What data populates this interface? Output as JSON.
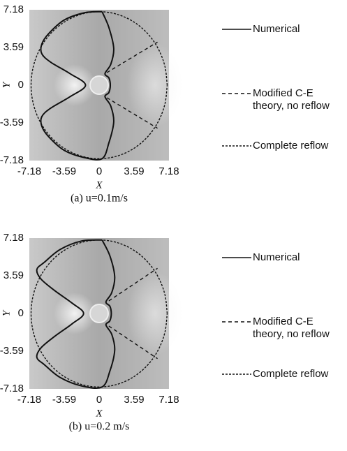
{
  "chart_data": [
    {
      "type": "line",
      "caption": "(a) u=0.1m/s",
      "x_label": "X",
      "y_label": "Y",
      "xlim": [
        -7.18,
        7.18
      ],
      "ylim": [
        -7.18,
        7.18
      ],
      "xticks": [
        -7.18,
        -3.59,
        0,
        3.59,
        7.18
      ],
      "yticks": [
        -7.18,
        -3.59,
        0,
        3.59,
        7.18
      ],
      "legend": "right",
      "series": [
        {
          "name": "Numerical",
          "color": "#111111",
          "line_style": "solid",
          "x": [
            0.3,
            -1.5,
            -3.6,
            -5.2,
            -5.9,
            -5.9,
            -5.0,
            -3.0,
            -1.4,
            -3.0,
            -5.0,
            -5.9,
            -5.9,
            -5.2,
            -3.6,
            -1.5,
            0.3,
            1.0,
            1.5,
            1.2,
            0.6,
            1.0,
            1.15,
            1.0,
            0.6,
            1.2,
            1.5,
            1.0,
            0.3
          ],
          "y": [
            7.0,
            6.9,
            6.2,
            4.9,
            3.9,
            3.0,
            2.2,
            1.1,
            0,
            -1.1,
            -2.2,
            -3.0,
            -3.9,
            -4.9,
            -6.2,
            -6.9,
            -7.0,
            -5.5,
            -3.5,
            -2.0,
            -1.1,
            -0.7,
            0,
            0.7,
            1.1,
            2.0,
            3.5,
            5.5,
            7.0
          ]
        },
        {
          "name": "Modified C-E theory, no reflow",
          "color": "#111111",
          "line_style": "5,4",
          "x": [
            0.8,
            6.0,
            null,
            0.8,
            6.0
          ],
          "y": [
            1.2,
            4.1,
            null,
            -1.2,
            -4.1
          ]
        },
        {
          "name": "Complete reflow",
          "color": "#111111",
          "line_style": "3,2",
          "x": [
            7,
            6.76,
            6.06,
            4.95,
            3.5,
            1.81,
            0,
            -1.81,
            -3.5,
            -4.95,
            -6.06,
            -6.76,
            -7,
            -6.76,
            -6.06,
            -4.95,
            -3.5,
            -1.81,
            0,
            1.81,
            3.5,
            4.95,
            6.06,
            6.76,
            7
          ],
          "y": [
            0,
            1.81,
            3.5,
            4.95,
            6.06,
            6.76,
            7,
            6.76,
            6.06,
            4.95,
            3.5,
            1.81,
            0,
            -1.81,
            -3.5,
            -4.95,
            -6.06,
            -6.76,
            -7,
            -6.76,
            -6.06,
            -4.95,
            -3.5,
            -1.81,
            0
          ]
        }
      ]
    },
    {
      "type": "line",
      "caption": "(b) u=0.2 m/s",
      "x_label": "X",
      "y_label": "Y",
      "xlim": [
        -7.18,
        7.18
      ],
      "ylim": [
        -7.18,
        7.18
      ],
      "xticks": [
        -7.18,
        -3.59,
        0,
        3.59,
        7.18
      ],
      "yticks": [
        -7.18,
        -3.59,
        0,
        3.59,
        7.18
      ],
      "legend": "right",
      "series": [
        {
          "name": "Numerical",
          "color": "#111111",
          "line_style": "solid",
          "x": [
            0.3,
            -1.8,
            -4.0,
            -5.6,
            -6.4,
            -6.0,
            -4.6,
            -2.8,
            -1.6,
            -2.8,
            -4.6,
            -6.0,
            -6.4,
            -5.6,
            -4.0,
            -1.8,
            0.3,
            1.1,
            1.6,
            1.3,
            0.7,
            1.1,
            1.25,
            1.1,
            0.7,
            1.3,
            1.6,
            1.1,
            0.3
          ],
          "y": [
            7.0,
            6.9,
            6.1,
            4.9,
            4.2,
            3.3,
            2.2,
            1.0,
            0,
            -1.0,
            -2.2,
            -3.3,
            -4.2,
            -4.9,
            -6.1,
            -6.9,
            -7.0,
            -5.5,
            -3.5,
            -2.0,
            -1.1,
            -0.7,
            0,
            0.7,
            1.1,
            2.0,
            3.5,
            5.5,
            7.0
          ]
        },
        {
          "name": "Modified C-E theory, no reflow",
          "color": "#111111",
          "line_style": "5,4",
          "x": [
            1.0,
            6.0,
            null,
            1.0,
            6.0
          ],
          "y": [
            1.2,
            4.3,
            null,
            -1.2,
            -4.3
          ]
        },
        {
          "name": "Complete reflow",
          "color": "#111111",
          "line_style": "3,2",
          "x": [
            7,
            6.76,
            6.06,
            4.95,
            3.5,
            1.81,
            0,
            -1.81,
            -3.5,
            -4.95,
            -6.06,
            -6.76,
            -7,
            -6.76,
            -6.06,
            -4.95,
            -3.5,
            -1.81,
            0,
            1.81,
            3.5,
            4.95,
            6.06,
            6.76,
            7
          ],
          "y": [
            0,
            1.81,
            3.5,
            4.95,
            6.06,
            6.76,
            7,
            6.76,
            6.06,
            4.95,
            3.5,
            1.81,
            0,
            -1.81,
            -3.5,
            -4.95,
            -6.06,
            -6.76,
            -7,
            -6.76,
            -6.06,
            -4.95,
            -3.5,
            -1.81,
            0
          ]
        }
      ]
    }
  ]
}
